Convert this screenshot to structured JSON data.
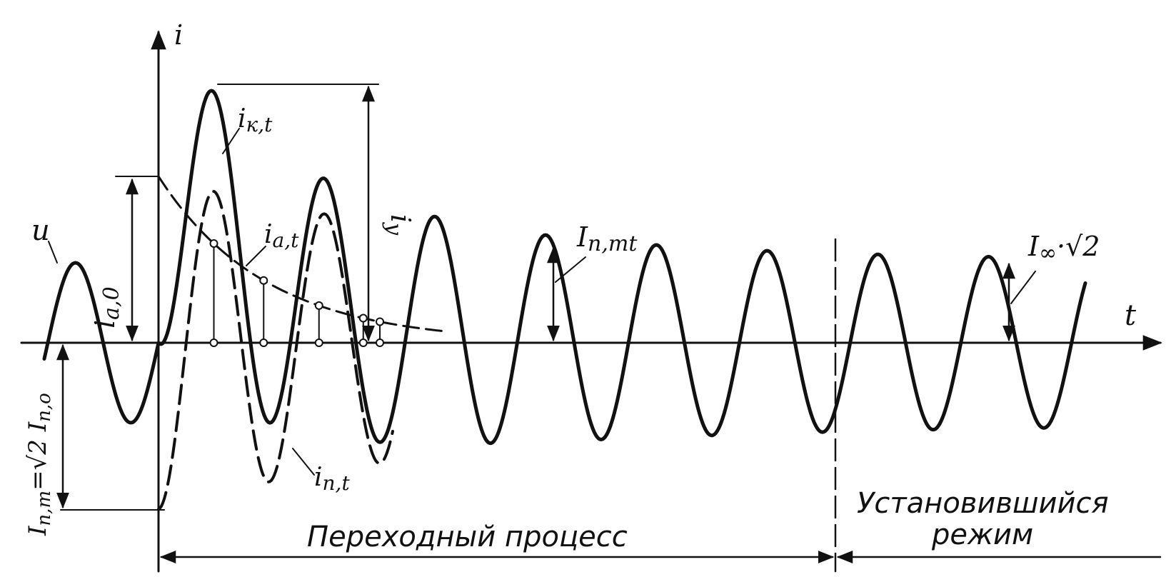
{
  "labels": {
    "axis_i": "i",
    "axis_t": "t",
    "u": "u",
    "i_a0": "i",
    "i_a0_sub": "a,0",
    "i_kt": "i",
    "i_kt_sub": "к,t",
    "i_at": "i",
    "i_at_sub": "a,t",
    "i_pt": "i",
    "i_pt_sub": "п,t",
    "i_y": "i",
    "i_y_sub": "у",
    "I_pmt": "I",
    "I_pmt_sub": "п,mt",
    "I_inf": "I",
    "I_inf_sub": "∞",
    "I_inf_rest": "·√2",
    "I_pm": "I",
    "I_pm_sub": "п,m",
    "I_pm_rest": "=√2 I",
    "I_pm_rest_sub": "п,о",
    "transient": "Переходный процесс",
    "steady_line1": "Установившийся",
    "steady_line2": "режим"
  },
  "colors": {
    "ink": "#111111",
    "background": "#ffffff"
  }
}
